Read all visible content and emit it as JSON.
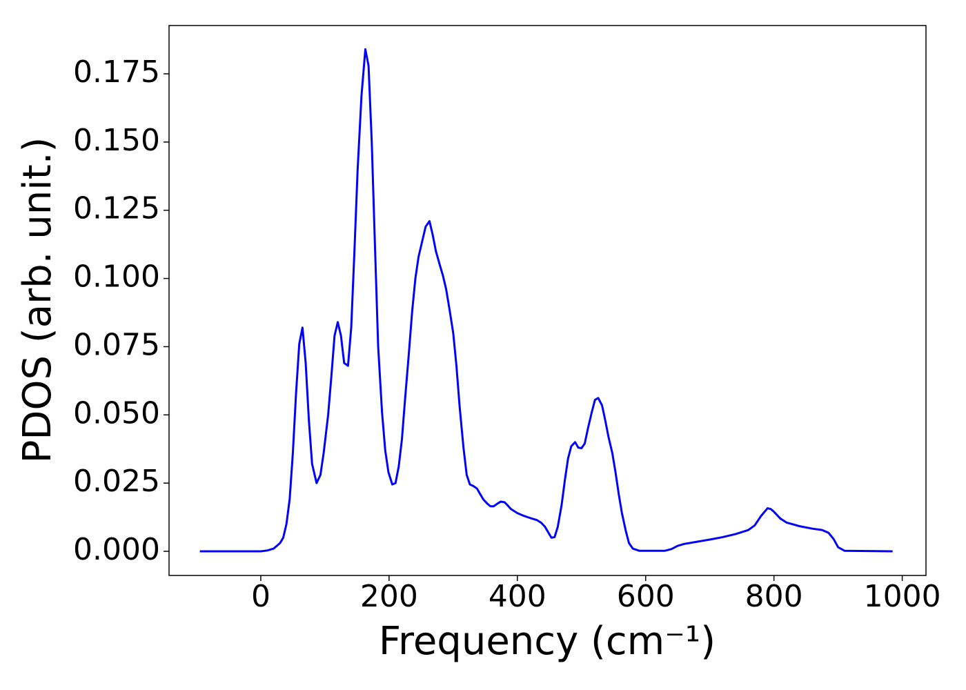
{
  "chart_data": {
    "type": "line",
    "xlabel": "Frequency (cm⁻¹)",
    "ylabel": "PDOS (arb. unit.)",
    "color": "#0000ff",
    "x": [
      -95,
      0,
      10,
      20,
      25,
      30,
      35,
      40,
      45,
      50,
      55,
      60,
      65,
      70,
      75,
      80,
      87,
      93,
      98,
      105,
      110,
      115,
      120,
      125,
      130,
      136,
      141,
      146,
      151,
      157,
      163,
      168,
      173,
      178,
      183,
      189,
      194,
      199,
      205,
      210,
      215,
      220,
      225,
      231,
      236,
      241,
      246,
      252,
      257,
      263,
      268,
      273,
      279,
      284,
      289,
      294,
      300,
      305,
      310,
      316,
      321,
      326,
      331,
      337,
      342,
      347,
      353,
      358,
      363,
      369,
      374,
      380,
      385,
      390,
      400,
      410,
      420,
      430,
      437,
      443,
      448,
      453,
      458,
      463,
      469,
      474,
      479,
      484,
      490,
      495,
      500,
      505,
      510,
      516,
      521,
      526,
      532,
      537,
      542,
      548,
      553,
      558,
      563,
      569,
      574,
      580,
      590,
      630,
      640,
      650,
      660,
      680,
      700,
      720,
      740,
      760,
      770,
      780,
      790,
      795,
      800,
      810,
      820,
      840,
      860,
      875,
      885,
      893,
      900,
      910,
      985
    ],
    "values": [
      0,
      0,
      0.0003,
      0.001,
      0.002,
      0.003,
      0.005,
      0.01,
      0.019,
      0.036,
      0.058,
      0.076,
      0.082,
      0.069,
      0.048,
      0.032,
      0.025,
      0.028,
      0.036,
      0.05,
      0.064,
      0.079,
      0.084,
      0.079,
      0.069,
      0.068,
      0.082,
      0.11,
      0.14,
      0.167,
      0.184,
      0.178,
      0.15,
      0.112,
      0.075,
      0.051,
      0.037,
      0.029,
      0.0245,
      0.025,
      0.031,
      0.041,
      0.056,
      0.073,
      0.088,
      0.1,
      0.108,
      0.114,
      0.119,
      0.121,
      0.116,
      0.11,
      0.105,
      0.101,
      0.096,
      0.089,
      0.08,
      0.068,
      0.053,
      0.038,
      0.028,
      0.0245,
      0.024,
      0.023,
      0.021,
      0.019,
      0.0175,
      0.0165,
      0.0165,
      0.0175,
      0.0182,
      0.018,
      0.0168,
      0.0155,
      0.014,
      0.013,
      0.0122,
      0.0115,
      0.0105,
      0.009,
      0.007,
      0.005,
      0.0052,
      0.009,
      0.017,
      0.026,
      0.034,
      0.0385,
      0.04,
      0.038,
      0.0378,
      0.0395,
      0.045,
      0.051,
      0.0555,
      0.0562,
      0.0535,
      0.048,
      0.042,
      0.036,
      0.029,
      0.021,
      0.014,
      0.0075,
      0.003,
      0.001,
      0.0002,
      0.0002,
      0.0008,
      0.002,
      0.0027,
      0.0035,
      0.0043,
      0.0052,
      0.0063,
      0.0078,
      0.0095,
      0.013,
      0.0158,
      0.0155,
      0.0145,
      0.012,
      0.0105,
      0.0092,
      0.0083,
      0.0078,
      0.0068,
      0.0045,
      0.0015,
      0.0002,
      0
    ],
    "xlim": [
      -143,
      1037
    ],
    "xticks": [
      0,
      200,
      400,
      600,
      800,
      1000
    ],
    "ylim": [
      -0.00885,
      0.1927
    ],
    "yticks": [
      {
        "value": 0,
        "label": "0.000"
      },
      {
        "value": 0.025,
        "label": "0.025"
      },
      {
        "value": 0.05,
        "label": "0.050"
      },
      {
        "value": 0.075,
        "label": "0.075"
      },
      {
        "value": 0.1,
        "label": "0.100"
      },
      {
        "value": 0.125,
        "label": "0.125"
      },
      {
        "value": 0.15,
        "label": "0.150"
      },
      {
        "value": 0.175,
        "label": "0.175"
      }
    ]
  }
}
